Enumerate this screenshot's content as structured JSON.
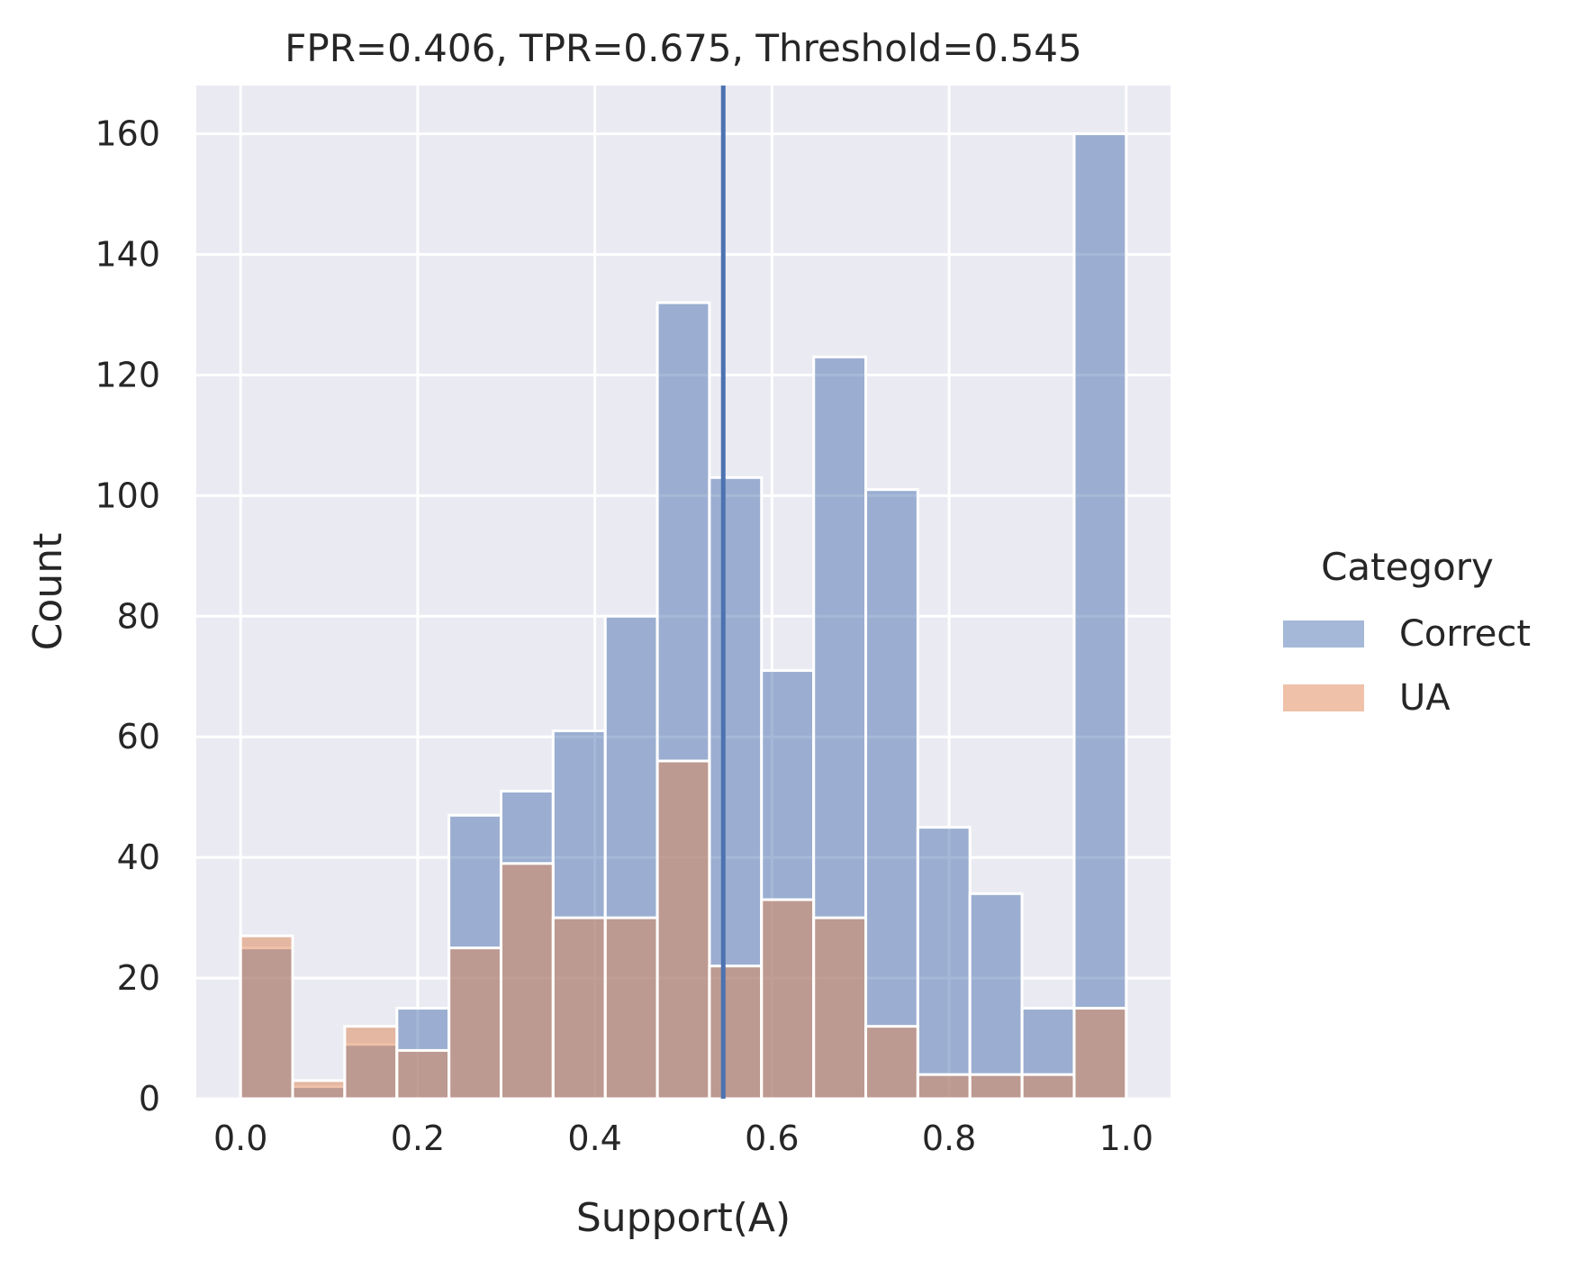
{
  "chart_data": {
    "type": "histogram",
    "title": "FPR=0.406, TPR=0.675, Threshold=0.545",
    "xlabel": "Support(A)",
    "ylabel": "Count",
    "xlim": [
      -0.05,
      1.05
    ],
    "ylim": [
      0,
      168
    ],
    "xticks": [
      0.0,
      0.2,
      0.4,
      0.6,
      0.8,
      1.0
    ],
    "xtick_labels": [
      "0.0",
      "0.2",
      "0.4",
      "0.6",
      "0.8",
      "1.0"
    ],
    "yticks": [
      0,
      20,
      40,
      60,
      80,
      100,
      120,
      140,
      160
    ],
    "ytick_labels": [
      "0",
      "20",
      "40",
      "60",
      "80",
      "100",
      "120",
      "140",
      "160"
    ],
    "grid": true,
    "bin_width": 0.0588,
    "bin_starts": [
      0.0,
      0.0588,
      0.1176,
      0.1765,
      0.2353,
      0.2941,
      0.3529,
      0.4118,
      0.4706,
      0.5294,
      0.5882,
      0.6471,
      0.7059,
      0.7647,
      0.8235,
      0.8824,
      0.9412
    ],
    "threshold": 0.545,
    "threshold_color": "#4c72b0",
    "series": [
      {
        "name": "Correct",
        "color": "#4c72b0",
        "values": [
          25,
          2,
          9,
          15,
          47,
          51,
          61,
          80,
          132,
          103,
          71,
          123,
          101,
          45,
          34,
          15,
          160
        ]
      },
      {
        "name": "UA",
        "color": "#dd8452",
        "values": [
          27,
          3,
          12,
          8,
          25,
          39,
          30,
          30,
          56,
          22,
          33,
          30,
          12,
          4,
          4,
          4,
          15
        ]
      }
    ],
    "legend": {
      "title": "Category",
      "position": "right",
      "entries": [
        "Correct",
        "UA"
      ]
    }
  }
}
